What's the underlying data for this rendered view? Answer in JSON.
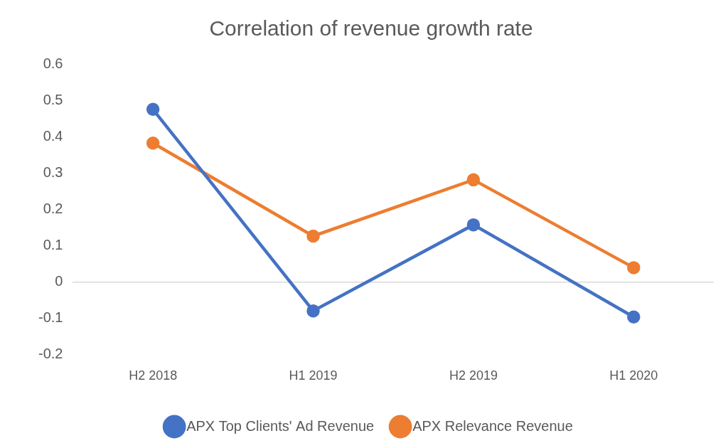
{
  "chart_data": {
    "type": "line",
    "title": "Correlation of revenue growth rate",
    "categories": [
      "H2 2018",
      "H1 2019",
      "H2 2019",
      "H1 2020"
    ],
    "series": [
      {
        "name": "APX Top Clients' Ad Revenue",
        "color": "#4472c4",
        "marker": "circle",
        "values": [
          0.475,
          -0.08,
          0.157,
          -0.097
        ]
      },
      {
        "name": "APX Relevance Revenue",
        "color": "#ed7d31",
        "marker": "circle",
        "values": [
          0.382,
          0.126,
          0.281,
          0.039
        ]
      }
    ],
    "ylim": [
      -0.2,
      0.6
    ],
    "yticks": [
      -0.2,
      -0.1,
      0,
      0.1,
      0.2,
      0.3,
      0.4,
      0.5,
      0.6
    ],
    "grid": false,
    "legend": "bottom"
  }
}
